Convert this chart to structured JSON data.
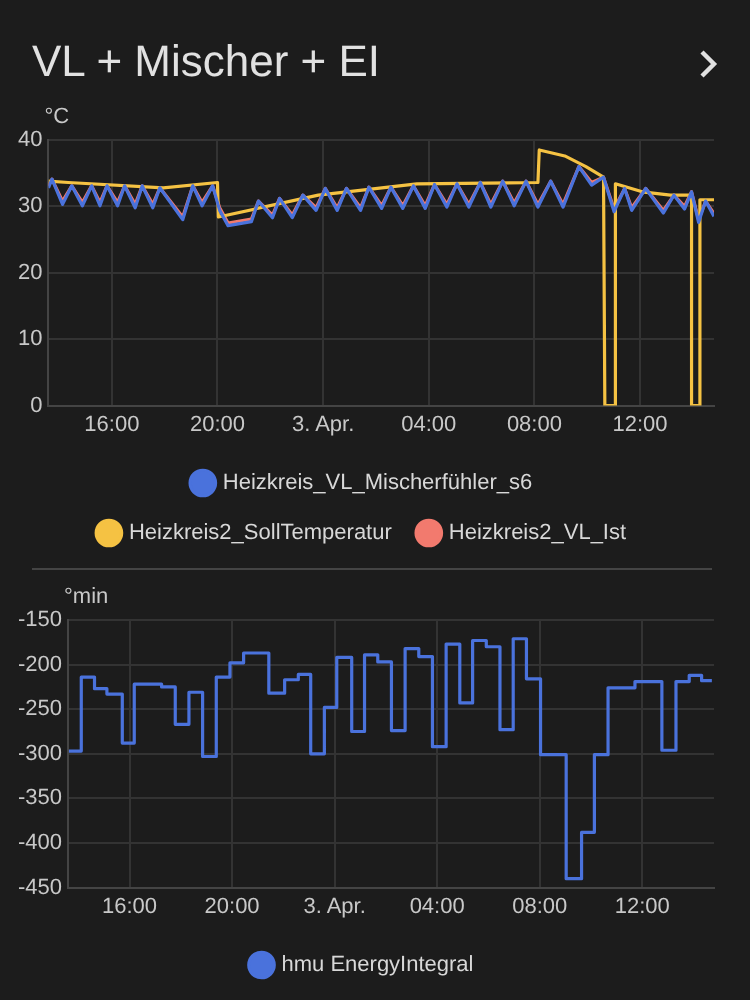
{
  "chart_data": [
    {
      "type": "line",
      "title": "VL + Mischer + EI",
      "ylabel": "°C",
      "xlim": [
        "--04-02T13:36",
        "--04-03T14:48"
      ],
      "xticks": [
        {
          "value": "--04-02T16:00",
          "label": "16:00"
        },
        {
          "value": "--04-02T20:00",
          "label": "20:00"
        },
        {
          "value": "--04-03T00:00",
          "label": "3. Apr."
        },
        {
          "value": "--04-03T04:00",
          "label": "04:00"
        },
        {
          "value": "--04-03T08:00",
          "label": "08:00"
        },
        {
          "value": "--04-03T12:00",
          "label": "12:00"
        }
      ],
      "ylim": [
        0,
        40
      ],
      "yticks": [
        0,
        10,
        20,
        30,
        40
      ],
      "grid": true,
      "legend": "bottom",
      "marker": "none",
      "line_style": "solid",
      "series": [
        {
          "name": "Heizkreis_VL_Mischerfühler_s6",
          "color": "#4a72dc",
          "x": [
            "--04-02T13:36",
            "--04-02T13:44",
            "--04-02T14:08",
            "--04-02T14:29",
            "--04-02T14:53",
            "--04-02T15:14",
            "--04-02T15:33",
            "--04-02T15:49",
            "--04-02T16:13",
            "--04-02T16:29",
            "--04-02T16:53",
            "--04-02T17:09",
            "--04-02T17:33",
            "--04-02T17:49",
            "--04-02T18:41",
            "--04-02T19:04",
            "--04-02T19:25",
            "--04-02T19:49",
            "--04-02T20:05",
            "--04-02T20:24",
            "--04-02T21:17",
            "--04-02T21:33",
            "--04-02T22:05",
            "--04-02T22:21",
            "--04-02T22:50",
            "--04-02T23:14",
            "--04-02T23:44",
            "--04-03T00:05",
            "--04-03T00:32",
            "--04-03T00:53",
            "--04-03T01:25",
            "--04-03T01:44",
            "--04-03T02:13",
            "--04-03T02:34",
            "--04-03T03:01",
            "--04-03T03:25",
            "--04-03T03:52",
            "--04-03T04:13",
            "--04-03T04:41",
            "--04-03T05:04",
            "--04-03T05:31",
            "--04-03T05:57",
            "--04-03T06:21",
            "--04-03T06:48",
            "--04-03T07:14",
            "--04-03T07:41",
            "--04-03T08:08",
            "--04-03T08:37",
            "--04-03T09:05",
            "--04-03T09:41",
            "--04-03T10:10",
            "--04-03T10:37",
            "--04-03T11:01",
            "--04-03T11:25",
            "--04-03T11:41",
            "--04-03T12:13",
            "--04-03T12:53",
            "--04-03T13:17",
            "--04-03T13:41",
            "--04-03T13:57",
            "--04-03T14:13",
            "--04-03T14:29",
            "--04-03T14:48"
          ],
          "values": [
            32.8,
            34.1,
            30.3,
            33.1,
            30.1,
            33.1,
            30.1,
            33.1,
            30.1,
            33.1,
            29.8,
            33.1,
            29.8,
            32.8,
            28.0,
            33.1,
            30.1,
            33.1,
            29.4,
            27.1,
            27.7,
            30.8,
            28.3,
            31.2,
            28.3,
            31.7,
            29.4,
            32.7,
            29.4,
            32.7,
            29.4,
            32.9,
            29.7,
            32.9,
            29.7,
            33.1,
            29.7,
            33.3,
            29.9,
            33.4,
            29.9,
            33.6,
            29.9,
            33.8,
            30.1,
            33.8,
            29.9,
            33.8,
            29.9,
            36.0,
            33.2,
            34.4,
            29.2,
            32.7,
            29.4,
            32.7,
            29.0,
            31.7,
            29.6,
            32.2,
            27.6,
            30.8,
            28.5
          ]
        },
        {
          "name": "Heizkreis2_SollTemperatur",
          "color": "#f5c243",
          "x": [
            "--04-02T13:36",
            "--04-02T14:21",
            "--04-02T17:57",
            "--04-02T20:00",
            "--04-02T20:02",
            "--04-02T23:49",
            "--04-03T03:33",
            "--04-03T08:08",
            "--04-03T08:11",
            "--04-03T09:09",
            "--04-03T09:57",
            "--04-03T10:37",
            "--04-03T10:40",
            "--04-03T11:04",
            "--04-03T11:04",
            "--04-03T12:05",
            "--04-03T13:09",
            "--04-03T13:57",
            "--04-03T13:57",
            "--04-03T14:16",
            "--04-03T14:16",
            "--04-03T14:48"
          ],
          "values": [
            33.8,
            33.6,
            32.8,
            33.6,
            28.4,
            31.7,
            33.4,
            33.6,
            38.5,
            37.6,
            36.0,
            34.4,
            0,
            0,
            33.4,
            32.2,
            31.7,
            31.7,
            0,
            0,
            31.0,
            31.0
          ]
        },
        {
          "name": "Heizkreis2_VL_Ist",
          "color": "#f27a6e",
          "x": [
            "--04-02T13:36",
            "--04-02T13:44",
            "--04-02T14:08",
            "--04-02T14:29",
            "--04-02T14:53",
            "--04-02T15:14",
            "--04-02T15:33",
            "--04-02T15:49",
            "--04-02T16:13",
            "--04-02T16:29",
            "--04-02T16:53",
            "--04-02T17:09",
            "--04-02T17:33",
            "--04-02T17:49",
            "--04-02T18:41",
            "--04-02T19:04",
            "--04-02T19:25",
            "--04-02T19:49",
            "--04-02T20:05",
            "--04-02T20:24",
            "--04-02T21:17",
            "--04-02T21:33",
            "--04-02T22:05",
            "--04-02T22:21",
            "--04-02T22:50",
            "--04-02T23:14",
            "--04-02T23:44",
            "--04-03T00:05",
            "--04-03T00:32",
            "--04-03T00:53",
            "--04-03T01:25",
            "--04-03T01:44",
            "--04-03T02:13",
            "--04-03T02:34",
            "--04-03T03:01",
            "--04-03T03:25",
            "--04-03T03:52",
            "--04-03T04:13",
            "--04-03T04:41",
            "--04-03T05:04",
            "--04-03T05:31",
            "--04-03T05:57",
            "--04-03T06:21",
            "--04-03T06:48",
            "--04-03T07:14",
            "--04-03T07:41",
            "--04-03T08:08",
            "--04-03T08:37",
            "--04-03T09:05",
            "--04-03T09:41",
            "--04-03T10:10",
            "--04-03T10:37",
            "--04-03T11:01",
            "--04-03T11:25",
            "--04-03T11:41",
            "--04-03T12:13",
            "--04-03T12:53",
            "--04-03T13:17",
            "--04-03T13:41",
            "--04-03T13:57",
            "--04-03T14:13",
            "--04-03T14:29",
            "--04-03T14:48"
          ],
          "values": [
            33.1,
            34.1,
            30.8,
            33.1,
            30.6,
            33.1,
            30.6,
            33.1,
            30.6,
            33.1,
            30.3,
            33.1,
            30.3,
            32.8,
            28.4,
            33.1,
            30.6,
            33.1,
            29.8,
            27.5,
            28.1,
            30.8,
            28.7,
            31.2,
            28.7,
            31.7,
            29.8,
            32.7,
            29.8,
            32.7,
            29.8,
            32.9,
            30.1,
            32.9,
            30.1,
            33.1,
            30.1,
            33.3,
            30.3,
            33.4,
            30.3,
            33.6,
            30.3,
            33.8,
            30.5,
            33.8,
            30.3,
            33.8,
            30.3,
            36.0,
            33.6,
            34.4,
            29.6,
            32.7,
            29.8,
            32.7,
            29.4,
            31.7,
            30.0,
            32.2,
            28.0,
            30.8,
            28.9
          ]
        }
      ]
    },
    {
      "type": "step",
      "ylabel": "°min",
      "xlim": [
        "--04-02T13:36",
        "--04-03T14:48"
      ],
      "xticks": [
        {
          "value": "--04-02T16:00",
          "label": "16:00"
        },
        {
          "value": "--04-02T20:00",
          "label": "20:00"
        },
        {
          "value": "--04-03T00:00",
          "label": "3. Apr."
        },
        {
          "value": "--04-03T04:00",
          "label": "04:00"
        },
        {
          "value": "--04-03T08:00",
          "label": "08:00"
        },
        {
          "value": "--04-03T12:00",
          "label": "12:00"
        }
      ],
      "ylim": [
        -450,
        -150
      ],
      "yticks": [
        -450,
        -400,
        -350,
        -300,
        -250,
        -200,
        -150
      ],
      "grid": true,
      "legend": "bottom",
      "marker": "none",
      "line_style": "solid",
      "series": [
        {
          "name": "hmu EnergyIntegral",
          "color": "#4a72dc",
          "x": [
            "--04-02T13:38",
            "--04-02T14:07",
            "--04-02T14:38",
            "--04-02T15:07",
            "--04-02T15:43",
            "--04-02T16:11",
            "--04-02T17:15",
            "--04-02T17:47",
            "--04-02T18:19",
            "--04-02T18:51",
            "--04-02T19:23",
            "--04-02T19:55",
            "--04-02T20:27",
            "--04-02T21:26",
            "--04-02T22:03",
            "--04-02T22:35",
            "--04-02T23:04",
            "--04-02T23:36",
            "--04-03T00:05",
            "--04-03T00:40",
            "--04-03T01:10",
            "--04-03T01:41",
            "--04-03T02:13",
            "--04-03T02:45",
            "--04-03T03:17",
            "--04-03T03:49",
            "--04-03T04:21",
            "--04-03T04:53",
            "--04-03T05:23",
            "--04-03T05:55",
            "--04-03T06:27",
            "--04-03T06:58",
            "--04-03T07:29",
            "--04-03T08:02",
            "--04-03T09:02",
            "--04-03T09:38",
            "--04-03T10:08",
            "--04-03T10:40",
            "--04-03T11:43",
            "--04-03T12:46",
            "--04-03T13:19",
            "--04-03T13:50",
            "--04-03T14:19",
            "--04-03T14:43"
          ],
          "values": [
            -297,
            -214,
            -227,
            -233,
            -288,
            -222,
            -225,
            -267,
            -231,
            -303,
            -214,
            -198,
            -187,
            -232,
            -217,
            -211,
            -300,
            -248,
            -192,
            -275,
            -189,
            -197,
            -274,
            -182,
            -191,
            -292,
            -177,
            -243,
            -173,
            -180,
            -273,
            -171,
            -216,
            -301,
            -440,
            -388,
            -301,
            -226,
            -219,
            -296,
            -219,
            -212,
            -218,
            -218
          ]
        }
      ]
    }
  ]
}
